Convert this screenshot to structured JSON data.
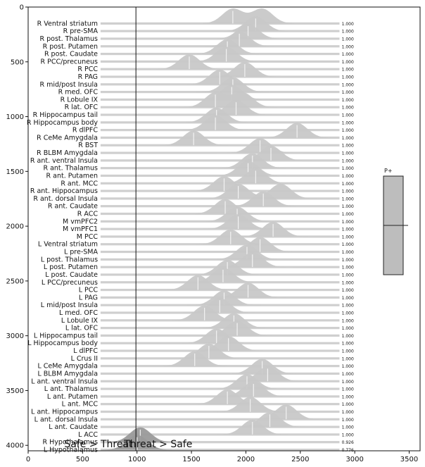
{
  "chart_data": {
    "type": "area",
    "title": "",
    "x_ticks": [
      0,
      500,
      1000,
      1500,
      2000,
      2500,
      3000,
      3500
    ],
    "y_ticks": [
      0,
      500,
      1000,
      1500,
      2000,
      2500,
      3000,
      3500,
      4000
    ],
    "xlim": [
      0,
      3600
    ],
    "ylim": [
      4050,
      0
    ],
    "threshold_x": 990,
    "xlabel_left": "Safe > Threat",
    "xlabel_right": "Threat > Safe",
    "legend": {
      "label": "P+"
    },
    "series": [
      {
        "label": "R Ventral striatum",
        "peaks": [
          1880,
          2150
        ],
        "pp": "1.000"
      },
      {
        "label": "R pre-SMA",
        "peaks": [
          2090
        ],
        "pp": "1.000"
      },
      {
        "label": "R post. Thalamus",
        "peaks": [
          2020
        ],
        "pp": "1.000"
      },
      {
        "label": "R post. Putamen",
        "peaks": [
          1940
        ],
        "pp": "1.000"
      },
      {
        "label": "R post. Caudate",
        "peaks": [
          1830
        ],
        "pp": "1.000"
      },
      {
        "label": "R PCC/precuneus",
        "peaks": [
          1820
        ],
        "pp": "1.000"
      },
      {
        "label": "R PCC",
        "peaks": [
          1480
        ],
        "pp": "1.000"
      },
      {
        "label": "R PAG",
        "peaks": [
          1990
        ],
        "pp": "1.000"
      },
      {
        "label": "R mid/post Insula",
        "peaks": [
          1760
        ],
        "pp": "1.000"
      },
      {
        "label": "R med. OFC",
        "peaks": [
          1880
        ],
        "pp": "1.000"
      },
      {
        "label": "R Lobule IX",
        "peaks": [
          1870
        ],
        "pp": "1.000"
      },
      {
        "label": "R lat. OFC",
        "peaks": [
          1720,
          1970
        ],
        "pp": "1.000"
      },
      {
        "label": "R Hippocampus tail",
        "peaks": [
          1910
        ],
        "pp": "1.000"
      },
      {
        "label": "R Hippocampus body",
        "peaks": [
          1730
        ],
        "pp": "1.000"
      },
      {
        "label": "R dlPFC",
        "peaks": [
          1720
        ],
        "pp": "1.000"
      },
      {
        "label": "R CeMe Amygdala",
        "peaks": [
          2470
        ],
        "pp": "1.000"
      },
      {
        "label": "R BST",
        "peaks": [
          1520
        ],
        "pp": "1.000"
      },
      {
        "label": "R BLBM Amygdala",
        "peaks": [
          2130
        ],
        "pp": "1.000"
      },
      {
        "label": "R ant. ventral Insula",
        "peaks": [
          2230
        ],
        "pp": "1.000"
      },
      {
        "label": "R ant. Thalamus",
        "peaks": [
          2060
        ],
        "pp": "1.000"
      },
      {
        "label": "R ant. Putamen",
        "peaks": [
          2020
        ],
        "pp": "1.000"
      },
      {
        "label": "R ant. MCC",
        "peaks": [
          2090
        ],
        "pp": "1.000"
      },
      {
        "label": "R ant. Hippocampus",
        "peaks": [
          1800
        ],
        "pp": "1.000"
      },
      {
        "label": "R ant. dorsal Insula",
        "peaks": [
          1930,
          2320
        ],
        "pp": "1.000"
      },
      {
        "label": "R ant. Caudate",
        "peaks": [
          2160
        ],
        "pp": "1.000"
      },
      {
        "label": "R ACC",
        "peaks": [
          1810
        ],
        "pp": "1.000"
      },
      {
        "label": "M vmPFC2",
        "peaks": [
          1920
        ],
        "pp": "1.000"
      },
      {
        "label": "M vmPFC1",
        "peaks": [
          1930
        ],
        "pp": "1.000"
      },
      {
        "label": "M PCC",
        "peaks": [
          2250
        ],
        "pp": "1.000"
      },
      {
        "label": "L Ventral striatum",
        "peaks": [
          1860
        ],
        "pp": "1.000"
      },
      {
        "label": "L pre-SMA",
        "peaks": [
          2130
        ],
        "pp": "1.000"
      },
      {
        "label": "L post. Thalamus",
        "peaks": [
          2010
        ],
        "pp": "1.000"
      },
      {
        "label": "L post. Putamen",
        "peaks": [
          2060
        ],
        "pp": "1.000"
      },
      {
        "label": "L post. Caudate",
        "peaks": [
          1830
        ],
        "pp": "1.000"
      },
      {
        "label": "L PCC/precuneus",
        "peaks": [
          1790
        ],
        "pp": "1.000"
      },
      {
        "label": "L PCC",
        "peaks": [
          1560
        ],
        "pp": "1.000"
      },
      {
        "label": "L PAG",
        "peaks": [
          2020
        ],
        "pp": "1.000"
      },
      {
        "label": "L mid/post Insula",
        "peaks": [
          1800
        ],
        "pp": "1.000"
      },
      {
        "label": "L med. OFC",
        "peaks": [
          1760
        ],
        "pp": "1.000"
      },
      {
        "label": "L Lobule IX",
        "peaks": [
          1620
        ],
        "pp": "1.000"
      },
      {
        "label": "L lat. OFC",
        "peaks": [
          1890
        ],
        "pp": "1.000"
      },
      {
        "label": "L Hippocampus tail",
        "peaks": [
          1920
        ],
        "pp": "1.000"
      },
      {
        "label": "L Hippocampus body",
        "peaks": [
          1730
        ],
        "pp": "1.000"
      },
      {
        "label": "L dlPFC",
        "peaks": [
          1840
        ],
        "pp": "1.000"
      },
      {
        "label": "L Crus II",
        "peaks": [
          1660
        ],
        "pp": "1.000"
      },
      {
        "label": "L CeMe Amygdala",
        "peaks": [
          1530
        ],
        "pp": "1.000"
      },
      {
        "label": "L BLBM Amygdala",
        "peaks": [
          2150
        ],
        "pp": "1.000"
      },
      {
        "label": "L ant. ventral Insula",
        "peaks": [
          2200
        ],
        "pp": "1.000"
      },
      {
        "label": "L ant. Thalamus",
        "peaks": [
          2010
        ],
        "pp": "1.000"
      },
      {
        "label": "L ant. Putamen",
        "peaks": [
          2070
        ],
        "pp": "1.000"
      },
      {
        "label": "L ant. MCC",
        "peaks": [
          1830
        ],
        "pp": "1.000"
      },
      {
        "label": "L ant. Hippocampus",
        "peaks": [
          2040
        ],
        "pp": "1.000"
      },
      {
        "label": "L ant. dorsal Insula",
        "peaks": [
          2370
        ],
        "pp": "1.000"
      },
      {
        "label": "L ant. Caudate",
        "peaks": [
          2220
        ],
        "pp": "1.000"
      },
      {
        "label": "L ACC",
        "peaks": [
          2060
        ],
        "pp": "1.000"
      },
      {
        "label": "R Hypothalamus",
        "peaks": [
          1030
        ],
        "pp": "0.926"
      },
      {
        "label": "L Hypothalamus",
        "peaks": [
          1000
        ],
        "pp": "0.776"
      }
    ]
  }
}
